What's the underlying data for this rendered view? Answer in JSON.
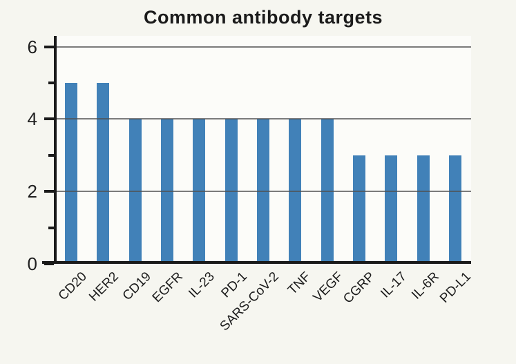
{
  "chart_data": {
    "type": "bar",
    "title": "Common antibody targets",
    "categories": [
      "CD20",
      "HER2",
      "CD19",
      "EGFR",
      "IL-23",
      "PD-1",
      "SARS-CoV-2",
      "TNF",
      "VEGF",
      "CGRP",
      "IL-17",
      "IL-6R",
      "PD-L1"
    ],
    "values": [
      5,
      5,
      4,
      4,
      4,
      4,
      4,
      4,
      4,
      3,
      3,
      3,
      3
    ],
    "xlabel": "",
    "ylabel": "",
    "ylim": [
      0,
      6.3
    ],
    "yticks_major": [
      0,
      2,
      4,
      6
    ],
    "yticks_minor": [
      1,
      3,
      5
    ],
    "gridlines": [
      2,
      4,
      6
    ],
    "grid": "horizontal-only",
    "legend": "none",
    "x_label_rotation_deg": 45,
    "colors": {
      "bar": "#4181b8",
      "background": "#f6f6f0",
      "plot_background": "#fcfcf9",
      "gridline": "#505050",
      "axis": "#1a1a1a",
      "text": "#1b1b1b"
    }
  }
}
